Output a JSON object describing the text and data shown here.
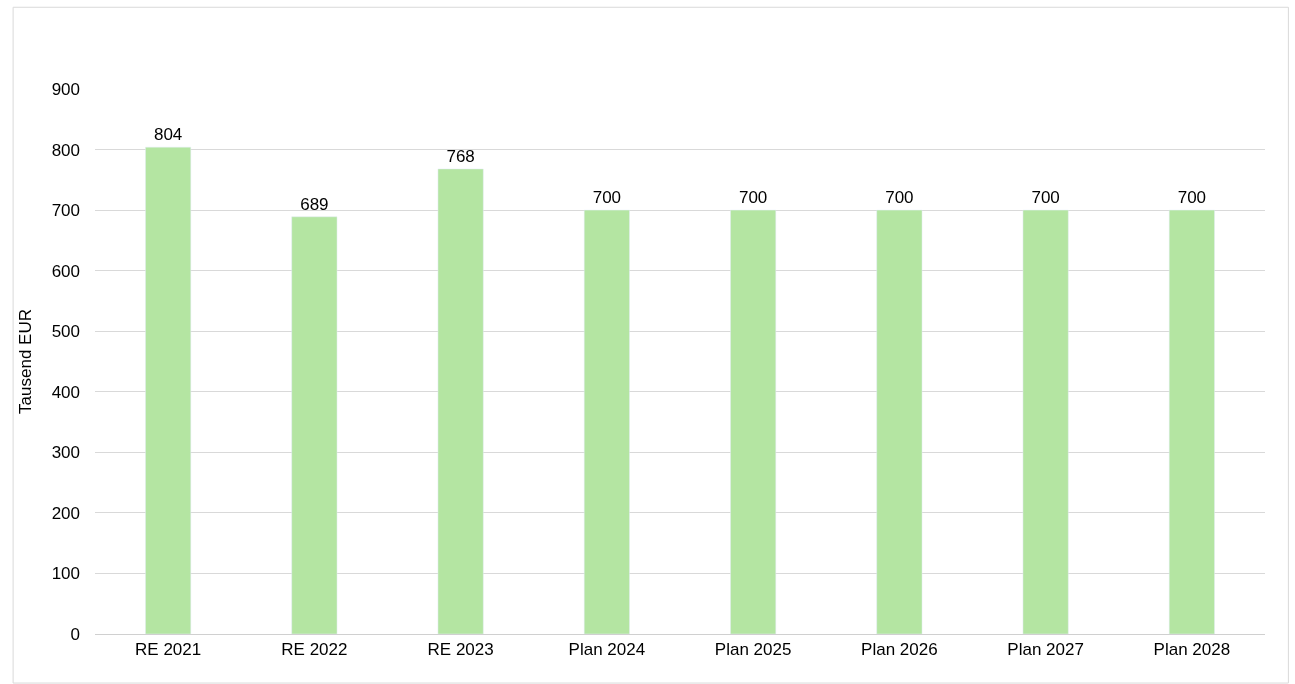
{
  "chart_data": {
    "type": "bar",
    "ylabel": "Tausend EUR",
    "categories": [
      "RE 2021",
      "RE 2022",
      "RE 2023",
      "Plan 2024",
      "Plan 2025",
      "Plan 2026",
      "Plan 2027",
      "Plan 2028"
    ],
    "values": [
      804,
      689,
      768,
      700,
      700,
      700,
      700,
      700
    ],
    "color": "#b4e5a2",
    "ylim": [
      0,
      900
    ],
    "yticks": [
      0,
      100,
      200,
      300,
      400,
      500,
      600,
      700,
      800,
      900
    ],
    "grid": "y",
    "data_labels": true,
    "legend": false
  }
}
